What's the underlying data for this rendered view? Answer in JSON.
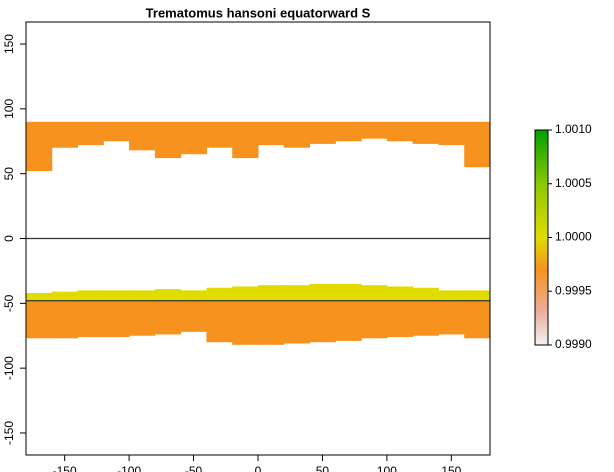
{
  "chart_data": {
    "type": "raster",
    "title": "Trematomus hansoni equatorward S",
    "xlim": [
      -180,
      180
    ],
    "ylim": [
      -167,
      167
    ],
    "xticks": [
      -150,
      -100,
      -50,
      0,
      50,
      100,
      150
    ],
    "yticks": [
      -150,
      -100,
      -50,
      0,
      50,
      100,
      150
    ],
    "lon": [
      -180,
      -160,
      -140,
      -120,
      -100,
      -80,
      -60,
      -40,
      -20,
      0,
      20,
      40,
      60,
      80,
      100,
      120,
      140,
      160,
      180
    ],
    "regions": [
      {
        "value": 0.9997,
        "top": 90,
        "bottom": [
          52,
          70,
          72,
          75,
          68,
          62,
          65,
          70,
          62,
          72,
          70,
          73,
          75,
          77,
          75,
          73,
          72,
          55
        ]
      },
      {
        "value": 1.0,
        "top": [
          -42,
          -41,
          -40,
          -40,
          -40,
          -39,
          -40,
          -38,
          -37,
          -36,
          -36,
          -35,
          -35,
          -36,
          -37,
          -38,
          -40,
          -40
        ],
        "bottom": -48
      },
      {
        "value": 0.9997,
        "top": -48,
        "bottom": [
          -77,
          -77,
          -76,
          -76,
          -75,
          -74,
          -72,
          -80,
          -82,
          -82,
          -81,
          -80,
          -79,
          -77,
          -76,
          -75,
          -74,
          -77
        ]
      }
    ],
    "hlines": [
      0,
      -48
    ],
    "colorscale": [
      [
        0.999,
        "#f2f2f2"
      ],
      [
        0.9993,
        "#ecb0a0"
      ],
      [
        0.9997,
        "#f7921e"
      ],
      [
        1.0,
        "#e0dc00"
      ],
      [
        1.0005,
        "#8cc800"
      ],
      [
        1.001,
        "#00a000"
      ]
    ],
    "zlim": [
      0.999,
      1.001
    ],
    "legend_ticks": [
      {
        "value": 1.001,
        "label": "1.0010"
      },
      1.0005,
      {
        "value": 1.0,
        "label": "1.0000"
      },
      0.9995,
      {
        "value": 0.999,
        "label": "0.9990"
      }
    ]
  }
}
